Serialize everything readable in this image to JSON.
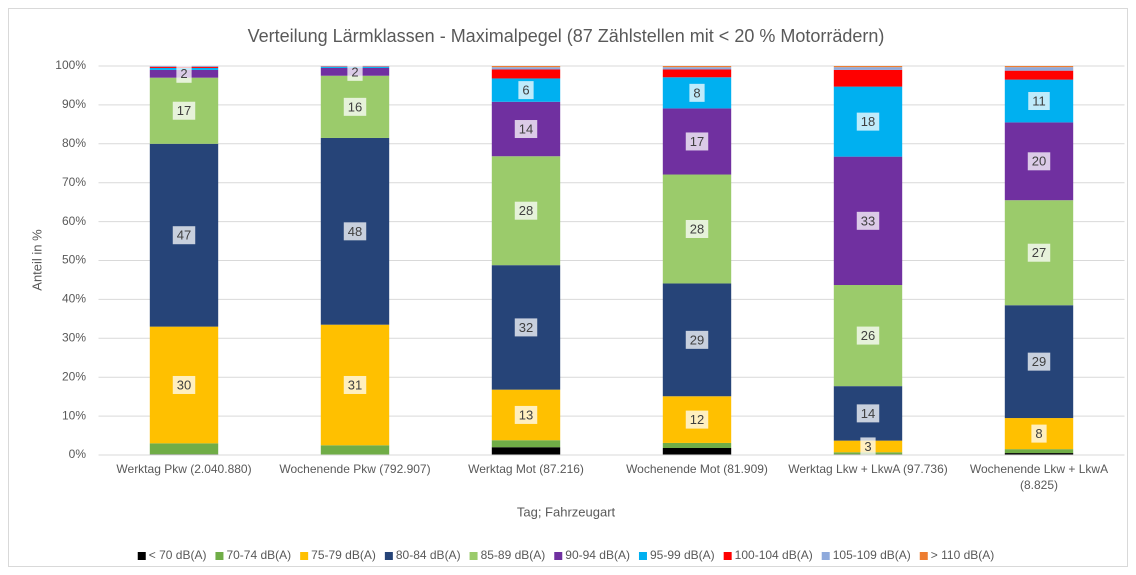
{
  "chart_data": {
    "type": "stacked_bar",
    "title": "Verteilung Lärmklassen - Maximalpegel (87 Zählstellen mit < 20 % Motorrädern)",
    "x_label": "Tag; Fahrzeugart",
    "y_label": "Anteil in %",
    "categories": [
      "Werktag Pkw (2.040.880)",
      "Wochenende Pkw (792.907)",
      "Werktag Mot (87.216)",
      "Wochenende Mot (81.909)",
      "Werktag Lkw + LkwA (97.736)",
      "Wochenende Lkw + LkwA (8.825)"
    ],
    "ylim": [
      0,
      100
    ],
    "yticks": [
      {
        "value": 0,
        "label": "0%"
      },
      {
        "value": 10,
        "label": "10%"
      },
      {
        "value": 20,
        "label": "20%"
      },
      {
        "value": 30,
        "label": "30%"
      },
      {
        "value": 40,
        "label": "40%"
      },
      {
        "value": 50,
        "label": "50%"
      },
      {
        "value": 60,
        "label": "60%"
      },
      {
        "value": 70,
        "label": "70%"
      },
      {
        "value": 80,
        "label": "80%"
      },
      {
        "value": 90,
        "label": "90%"
      },
      {
        "value": 100,
        "label": "100%"
      }
    ],
    "grid": true,
    "legend": "bottom",
    "series": [
      {
        "name": "< 70 dB(A)",
        "color": "#000000",
        "labels": false,
        "values": [
          0.2,
          0.1,
          2,
          1.8,
          0.2,
          0.5
        ]
      },
      {
        "name": "70-74 dB(A)",
        "color": "#70ad47",
        "labels": false,
        "values": [
          2.8,
          2.4,
          1.8,
          1.3,
          0.5,
          1.0
        ]
      },
      {
        "name": "75-79 dB(A)",
        "color": "#ffc000",
        "labels": true,
        "values": [
          30,
          31,
          13,
          12,
          3,
          8
        ]
      },
      {
        "name": "80-84 dB(A)",
        "color": "#264478",
        "labels": true,
        "values": [
          47,
          48,
          32,
          29,
          14,
          29
        ]
      },
      {
        "name": "85-89 dB(A)",
        "color": "#9bcb6b",
        "labels": true,
        "values": [
          17,
          16,
          28,
          28,
          26,
          27
        ]
      },
      {
        "name": "90-94 dB(A)",
        "color": "#7030a0",
        "labels": true,
        "values": [
          2,
          2,
          14,
          17,
          33,
          20
        ]
      },
      {
        "name": "95-99 dB(A)",
        "color": "#00b0f0",
        "labels": true,
        "values": [
          0.5,
          0.3,
          6,
          8,
          18,
          11
        ]
      },
      {
        "name": "100-104 dB(A)",
        "color": "#ff0000",
        "labels": false,
        "values": [
          0.3,
          0.1,
          2.3,
          2,
          4.3,
          2.3
        ]
      },
      {
        "name": "105-109 dB(A)",
        "color": "#8faadc",
        "labels": false,
        "values": [
          0.2,
          0.1,
          0.6,
          0.6,
          0.7,
          0.9
        ]
      },
      {
        "name": "> 110 dB(A)",
        "color": "#ed7d31",
        "labels": false,
        "values": [
          0,
          0,
          0.3,
          0.3,
          0.3,
          0.3
        ]
      }
    ]
  }
}
